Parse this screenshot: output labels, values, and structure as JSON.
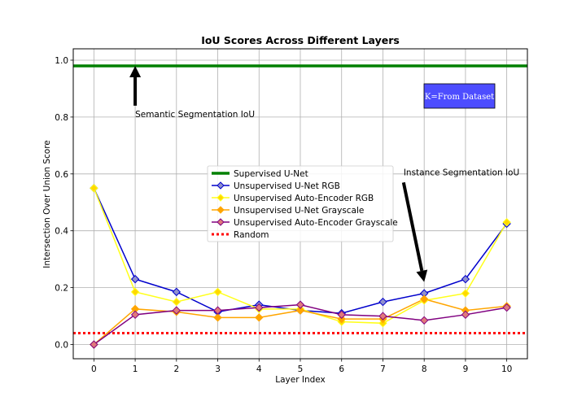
{
  "chart_data": {
    "type": "line",
    "title": "IoU Scores Across Different Layers",
    "xlabel": "Layer Index",
    "ylabel": "Intersection Over Union Score",
    "xlim": [
      -0.5,
      10.5
    ],
    "ylim": [
      -0.05,
      1.04
    ],
    "x_ticks": [
      "0",
      "1",
      "2",
      "3",
      "4",
      "5",
      "6",
      "7",
      "8",
      "9",
      "10"
    ],
    "y_ticks": [
      "0.0",
      "0.2",
      "0.4",
      "0.6",
      "0.8",
      "1.0"
    ],
    "grid": true,
    "legend_placement": "center",
    "x": [
      0,
      1,
      2,
      3,
      4,
      5,
      6,
      7,
      8,
      9,
      10
    ],
    "reference_lines": [
      {
        "name": "Supervised U-Net",
        "value": 0.98,
        "color": "#008000",
        "style": "solid"
      },
      {
        "name": "Random",
        "value": 0.04,
        "color": "#ff0000",
        "style": "dotted"
      }
    ],
    "series": [
      {
        "name": "Unsupervised U-Net RGB",
        "color": "#0000cc",
        "marker": "diamond",
        "marker_fill": "#9090cc",
        "values": [
          0.55,
          0.23,
          0.185,
          0.115,
          0.14,
          0.12,
          0.11,
          0.15,
          0.18,
          0.23,
          0.425
        ]
      },
      {
        "name": "Unsupervised Auto-Encoder RGB",
        "color": "#ffff1a",
        "marker": "diamond",
        "marker_fill": "#ffd700",
        "values": [
          0.55,
          0.185,
          0.15,
          0.185,
          0.125,
          0.125,
          0.08,
          0.075,
          0.155,
          0.18,
          0.43
        ]
      },
      {
        "name": "Unsupervised U-Net Grayscale",
        "color": "#ffa500",
        "marker": "diamond",
        "marker_fill": "#ffa500",
        "values": [
          0.0,
          0.125,
          0.115,
          0.095,
          0.095,
          0.12,
          0.09,
          0.09,
          0.16,
          0.12,
          0.135
        ]
      },
      {
        "name": "Unsupervised Auto-Encoder Grayscale",
        "color": "#800080",
        "marker": "diamond",
        "marker_fill": "#e07a7a",
        "values": [
          0.0,
          0.105,
          0.12,
          0.12,
          0.13,
          0.14,
          0.105,
          0.1,
          0.085,
          0.105,
          0.13
        ]
      }
    ],
    "legend": [
      "Supervised U-Net",
      "Unsupervised U-Net RGB",
      "Unsupervised Auto-Encoder RGB",
      "Unsupervised U-Net Grayscale",
      "Unsupervised Auto-Encoder Grayscale",
      "Random"
    ],
    "annotations": [
      {
        "text": "Semantic Segmentation IoU",
        "arrow_tip": [
          1,
          0.98
        ],
        "arrow_tail": [
          1,
          0.84
        ]
      },
      {
        "text": "Instance Segmentation IoU",
        "arrow_tip": [
          8,
          0.22
        ],
        "arrow_tail": [
          7.5,
          0.57
        ]
      }
    ],
    "text_box": {
      "text": "K=From Dataset",
      "background": "#4d4dff"
    }
  }
}
